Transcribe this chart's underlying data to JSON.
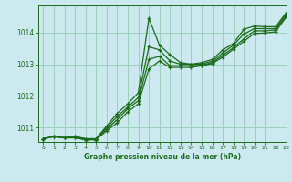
{
  "title": "Graphe pression niveau de la mer (hPa)",
  "bg_color": "#cde9f0",
  "grid_color": "#9ecfbd",
  "line_color": "#1a6b1a",
  "xlim": [
    -0.5,
    23
  ],
  "ylim": [
    1010.55,
    1014.85
  ],
  "yticks": [
    1011,
    1012,
    1013,
    1014
  ],
  "xticks": [
    0,
    1,
    2,
    3,
    4,
    5,
    6,
    7,
    8,
    9,
    10,
    11,
    12,
    13,
    14,
    15,
    16,
    17,
    18,
    19,
    20,
    21,
    22,
    23
  ],
  "series": [
    [
      1010.65,
      1010.72,
      1010.68,
      1010.72,
      1010.65,
      1010.65,
      1011.05,
      1011.45,
      1011.75,
      1012.1,
      1014.45,
      1013.6,
      1013.3,
      1013.05,
      1013.0,
      1013.05,
      1013.15,
      1013.45,
      1013.65,
      1014.1,
      1014.2,
      1014.18,
      1014.18,
      1014.62
    ],
    [
      1010.65,
      1010.72,
      1010.68,
      1010.72,
      1010.65,
      1010.65,
      1011.0,
      1011.35,
      1011.65,
      1011.95,
      1013.55,
      1013.45,
      1013.1,
      1013.0,
      1013.0,
      1013.0,
      1013.1,
      1013.35,
      1013.6,
      1013.95,
      1014.12,
      1014.12,
      1014.12,
      1014.57
    ],
    [
      1010.65,
      1010.72,
      1010.68,
      1010.68,
      1010.62,
      1010.62,
      1010.95,
      1011.25,
      1011.6,
      1011.85,
      1013.15,
      1013.25,
      1012.95,
      1012.95,
      1012.95,
      1012.97,
      1013.05,
      1013.28,
      1013.52,
      1013.8,
      1014.05,
      1014.05,
      1014.08,
      1014.52
    ],
    [
      1010.65,
      1010.72,
      1010.68,
      1010.68,
      1010.62,
      1010.62,
      1010.9,
      1011.15,
      1011.5,
      1011.75,
      1012.85,
      1013.1,
      1012.9,
      1012.9,
      1012.9,
      1012.95,
      1013.02,
      1013.22,
      1013.47,
      1013.72,
      1013.97,
      1013.98,
      1014.02,
      1014.48
    ]
  ]
}
